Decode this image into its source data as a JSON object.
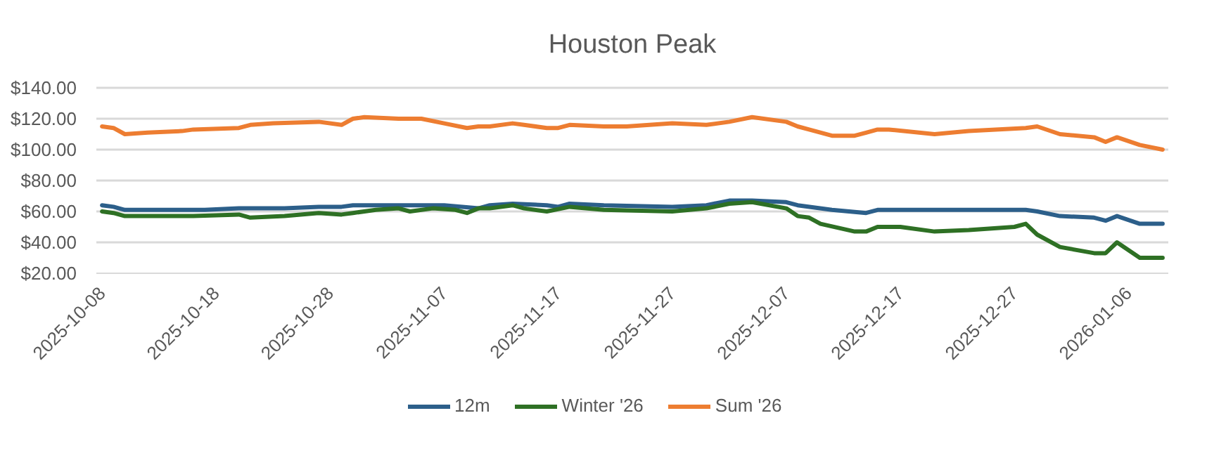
{
  "chart_data": {
    "type": "line",
    "title": "Houston Peak",
    "xlim": [
      "2025-10-07T12:00",
      "2026-01-09T12:00"
    ],
    "xticks": [
      "2025-10-08",
      "2025-10-18",
      "2025-10-28",
      "2025-11-07",
      "2025-11-17",
      "2025-11-27",
      "2025-12-07",
      "2025-12-17",
      "2025-12-27",
      "2026-01-06"
    ],
    "ylim": [
      20,
      140
    ],
    "yticks": [
      {
        "value": 20,
        "label": "$20.00"
      },
      {
        "value": 40,
        "label": "$40.00"
      },
      {
        "value": 60,
        "label": "$60.00"
      },
      {
        "value": 80,
        "label": "$80.00"
      },
      {
        "value": 100,
        "label": "$100.00"
      },
      {
        "value": 120,
        "label": "$120.00"
      },
      {
        "value": 140,
        "label": "$140.00"
      }
    ],
    "grid": "y",
    "legend": "bottom",
    "series": [
      {
        "name": "12m",
        "color": "#2c5f8a",
        "x": [
          "2025-10-08",
          "2025-10-09",
          "2025-10-10",
          "2025-10-17",
          "2025-10-20",
          "2025-10-24",
          "2025-10-27",
          "2025-10-29",
          "2025-10-30",
          "2025-11-07",
          "2025-11-10",
          "2025-11-11",
          "2025-11-13",
          "2025-11-16",
          "2025-11-17",
          "2025-11-18",
          "2025-11-21",
          "2025-11-27",
          "2025-11-30",
          "2025-12-02",
          "2025-12-04",
          "2025-12-07",
          "2025-12-08",
          "2025-12-11",
          "2025-12-14",
          "2025-12-15",
          "2025-12-28",
          "2025-12-29",
          "2025-12-31",
          "2026-01-03",
          "2026-01-04",
          "2026-01-05",
          "2026-01-07",
          "2026-01-09"
        ],
        "values": [
          64,
          63,
          61,
          61,
          62,
          62,
          63,
          63,
          64,
          64,
          62,
          64,
          65,
          64,
          63,
          65,
          64,
          63,
          64,
          67,
          67,
          66,
          64,
          61,
          59,
          61,
          61,
          60,
          57,
          56,
          54,
          57,
          52,
          52
        ]
      },
      {
        "name": "Winter '26",
        "color": "#2e7024",
        "x": [
          "2025-10-08",
          "2025-10-09",
          "2025-10-10",
          "2025-10-16",
          "2025-10-20",
          "2025-10-21",
          "2025-10-24",
          "2025-10-27",
          "2025-10-29",
          "2025-10-30",
          "2025-11-01",
          "2025-11-03",
          "2025-11-04",
          "2025-11-06",
          "2025-11-08",
          "2025-11-09",
          "2025-11-10",
          "2025-11-11",
          "2025-11-13",
          "2025-11-14",
          "2025-11-16",
          "2025-11-18",
          "2025-11-21",
          "2025-11-27",
          "2025-11-30",
          "2025-12-02",
          "2025-12-04",
          "2025-12-07",
          "2025-12-08",
          "2025-12-09",
          "2025-12-10",
          "2025-12-13",
          "2025-12-14",
          "2025-12-15",
          "2025-12-17",
          "2025-12-20",
          "2025-12-23",
          "2025-12-27",
          "2025-12-28",
          "2025-12-29",
          "2025-12-31",
          "2026-01-03",
          "2026-01-04",
          "2026-01-05",
          "2026-01-07",
          "2026-01-09"
        ],
        "values": [
          60,
          59,
          57,
          57,
          58,
          56,
          57,
          59,
          58,
          59,
          61,
          62,
          60,
          62,
          61,
          59,
          62,
          62,
          64,
          62,
          60,
          63,
          61,
          60,
          62,
          65,
          66,
          62,
          57,
          56,
          52,
          47,
          47,
          50,
          50,
          47,
          48,
          50,
          52,
          45,
          37,
          33,
          33,
          40,
          30,
          30
        ]
      },
      {
        "name": "Sum '26",
        "color": "#ed7d31",
        "x": [
          "2025-10-08",
          "2025-10-09",
          "2025-10-10",
          "2025-10-12",
          "2025-10-15",
          "2025-10-16",
          "2025-10-20",
          "2025-10-21",
          "2025-10-23",
          "2025-10-27",
          "2025-10-29",
          "2025-10-30",
          "2025-10-31",
          "2025-11-03",
          "2025-11-05",
          "2025-11-07",
          "2025-11-09",
          "2025-11-10",
          "2025-11-11",
          "2025-11-13",
          "2025-11-14",
          "2025-11-16",
          "2025-11-17",
          "2025-11-18",
          "2025-11-21",
          "2025-11-23",
          "2025-11-27",
          "2025-11-30",
          "2025-12-02",
          "2025-12-04",
          "2025-12-07",
          "2025-12-08",
          "2025-12-09",
          "2025-12-11",
          "2025-12-13",
          "2025-12-14",
          "2025-12-15",
          "2025-12-16",
          "2025-12-20",
          "2025-12-23",
          "2025-12-28",
          "2025-12-29",
          "2025-12-31",
          "2026-01-03",
          "2026-01-04",
          "2026-01-05",
          "2026-01-07",
          "2026-01-09"
        ],
        "values": [
          115,
          114,
          110,
          111,
          112,
          113,
          114,
          116,
          117,
          118,
          116,
          120,
          121,
          120,
          120,
          117,
          114,
          115,
          115,
          117,
          116,
          114,
          114,
          116,
          115,
          115,
          117,
          116,
          118,
          121,
          118,
          115,
          113,
          109,
          109,
          111,
          113,
          113,
          110,
          112,
          114,
          115,
          110,
          108,
          105,
          108,
          103,
          100
        ]
      }
    ]
  }
}
